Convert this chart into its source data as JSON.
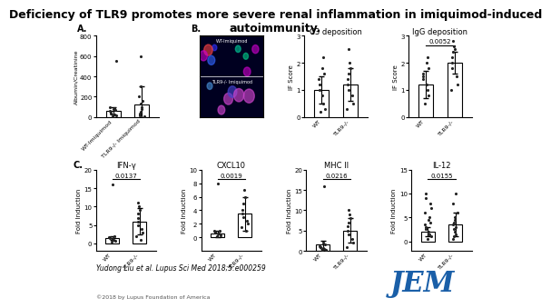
{
  "title": "Deficiency of TLR9 promotes more severe renal inflammation in imiquimod-induced\nautoimmunity.",
  "title_fontsize": 9,
  "panel_A": {
    "label": "A.",
    "ylabel": "Albumin/Creatinine",
    "ylim": [
      0,
      800
    ],
    "yticks": [
      0,
      200,
      400,
      600,
      800
    ],
    "groups": [
      "WT-Imiquimod",
      "TLR9-/- Imiquimod"
    ],
    "bar_means": [
      60,
      120
    ],
    "bar_errors": [
      40,
      180
    ],
    "scatter_WT": [
      10,
      15,
      20,
      25,
      30,
      45,
      60,
      70,
      80,
      90,
      100,
      550
    ],
    "scatter_TLR9": [
      10,
      15,
      20,
      30,
      50,
      80,
      100,
      130,
      160,
      200,
      300,
      600
    ]
  },
  "panel_B_C3": {
    "label": "C3 deposition",
    "ylabel": "IF Score",
    "ylim": [
      0,
      3
    ],
    "yticks": [
      0,
      1,
      2,
      3
    ],
    "groups": [
      "WT",
      "TLR9-/-"
    ],
    "bar_means": [
      1.0,
      1.2
    ],
    "bar_errors": [
      0.5,
      0.6
    ],
    "scatter_WT": [
      0.2,
      0.3,
      0.5,
      0.8,
      1.0,
      1.2,
      1.4,
      1.6,
      1.8,
      2.2
    ],
    "scatter_TLR9": [
      0.3,
      0.5,
      0.8,
      1.0,
      1.2,
      1.4,
      1.6,
      1.8,
      2.0,
      2.5
    ]
  },
  "panel_B_IgG": {
    "label": "IgG deposition",
    "ylabel": "IF Score",
    "ylim": [
      0,
      3
    ],
    "yticks": [
      0,
      1,
      2,
      3
    ],
    "pvalue": "0.0052",
    "groups": [
      "WT",
      "TLR9-/-"
    ],
    "bar_means": [
      1.2,
      2.0
    ],
    "bar_errors": [
      0.5,
      0.4
    ],
    "scatter_WT": [
      0.5,
      0.8,
      1.0,
      1.2,
      1.4,
      1.5,
      1.6,
      1.8,
      2.0,
      2.2
    ],
    "scatter_TLR9": [
      1.0,
      1.2,
      1.5,
      1.8,
      2.0,
      2.2,
      2.4,
      2.5,
      2.6,
      2.8
    ]
  },
  "panel_C_IFN": {
    "label": "IFN-γ",
    "ylabel": "Fold Induction",
    "ylim": [
      -2,
      20
    ],
    "yticks": [
      0,
      5,
      10,
      15,
      20
    ],
    "pvalue": "0.0137",
    "groups": [
      "WT",
      "TLR9-/-"
    ],
    "bar_means": [
      1.5,
      6.0
    ],
    "bar_errors": [
      0.5,
      3.5
    ],
    "scatter_WT": [
      0.5,
      0.8,
      1.0,
      1.2,
      1.4,
      1.6,
      1.8,
      2.0,
      16.0
    ],
    "scatter_TLR9": [
      1.0,
      2.0,
      3.0,
      4.0,
      5.0,
      6.0,
      7.0,
      8.0,
      9.0,
      10.0,
      11.0
    ]
  },
  "panel_C_CXCL10": {
    "label": "CXCL10",
    "ylabel": "Fold Induction",
    "ylim": [
      -2,
      10
    ],
    "yticks": [
      0,
      2,
      4,
      6,
      8,
      10
    ],
    "pvalue": "0.0019",
    "groups": [
      "WT",
      "TLR9-/-"
    ],
    "bar_means": [
      0.5,
      3.5
    ],
    "bar_errors": [
      0.5,
      2.5
    ],
    "scatter_WT": [
      0.2,
      0.3,
      0.5,
      0.6,
      0.7,
      0.8,
      0.9,
      1.0,
      8.0
    ],
    "scatter_TLR9": [
      1.0,
      1.5,
      2.0,
      2.5,
      3.0,
      3.5,
      4.0,
      5.0,
      6.0,
      7.0
    ]
  },
  "panel_C_MHC": {
    "label": "MHC II",
    "ylabel": "Fold Induction",
    "ylim": [
      0,
      20
    ],
    "yticks": [
      0,
      5,
      10,
      15,
      20
    ],
    "pvalue": "0.0216",
    "groups": [
      "WT",
      "TLR9-/-"
    ],
    "bar_means": [
      1.5,
      5.0
    ],
    "bar_errors": [
      1.0,
      3.0
    ],
    "scatter_WT": [
      0.2,
      0.3,
      0.5,
      0.6,
      0.8,
      1.0,
      1.2,
      1.5,
      2.0,
      16.0
    ],
    "scatter_TLR9": [
      1.0,
      2.0,
      3.0,
      4.0,
      5.0,
      6.0,
      7.0,
      8.0,
      9.0,
      10.0
    ]
  },
  "panel_C_IL12": {
    "label": "IL-12",
    "ylabel": "Fold Induction",
    "ylim": [
      -2,
      15
    ],
    "yticks": [
      0,
      5,
      10,
      15
    ],
    "pvalue": "0.0155",
    "groups": [
      "WT",
      "TLR9-/-"
    ],
    "bar_means": [
      2.0,
      3.5
    ],
    "bar_errors": [
      1.0,
      2.5
    ],
    "scatter_WT": [
      0.5,
      1.0,
      1.5,
      2.0,
      2.5,
      3.0,
      3.5,
      4.0,
      4.5,
      5.0,
      6.0,
      7.0,
      8.0,
      9.0,
      10.0
    ],
    "scatter_TLR9": [
      0.5,
      1.0,
      1.5,
      2.0,
      2.5,
      3.0,
      3.5,
      4.0,
      4.5,
      5.0,
      6.0,
      8.0,
      10.0
    ]
  },
  "bar_color": "#ffffff",
  "bar_edgecolor": "#000000",
  "scatter_color": "#222222",
  "error_color": "#000000",
  "citation": "Yudong Liu et al. Lupus Sci Med 2018;5:e000259",
  "copyright": "©2018 by Lupus Foundation of America",
  "background_color": "#ffffff",
  "img_top_label": "WT-Imiquimod",
  "img_bot_label": "TLR9-/- Imiquimod",
  "panel_B_label": "B.",
  "panel_A_label_text": "A.",
  "panel_C_label_text": "C.",
  "jem_color": "#1a5fa8"
}
